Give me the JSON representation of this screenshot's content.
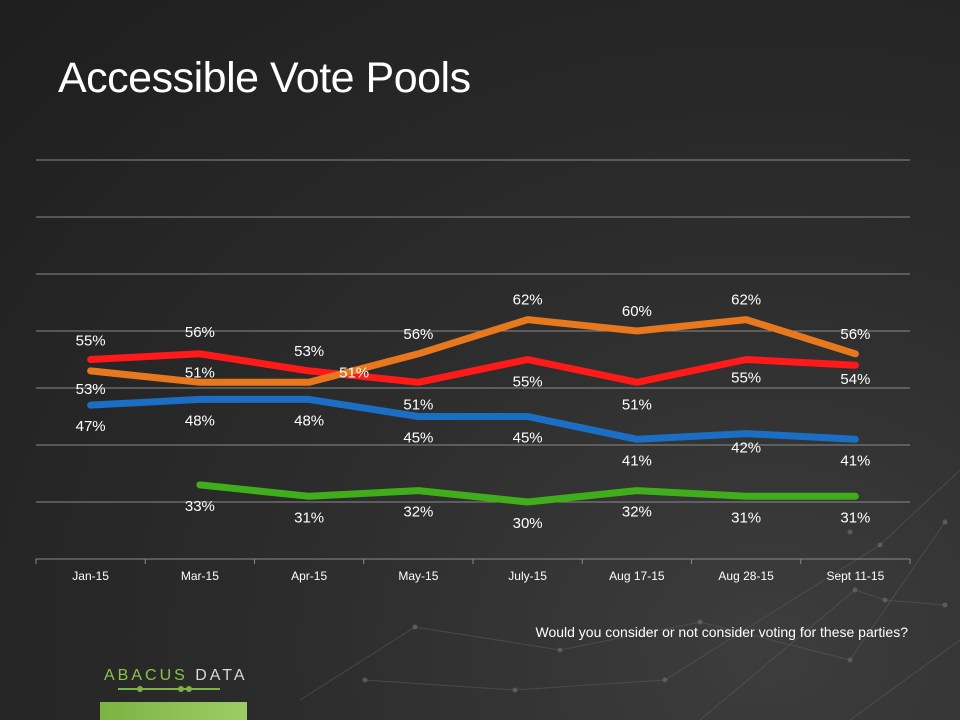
{
  "title": "Accessible Vote Pools",
  "question": "Would you consider or not consider voting for these parties?",
  "brand": {
    "name_part1": "ABACUS",
    "name_part2": "DATA"
  },
  "colors": {
    "background": "#262626",
    "grid": "#8a8a8a",
    "brand_green": "#7cb342"
  },
  "chart_data": {
    "type": "line",
    "title": "Accessible Vote Pools",
    "xlabel": "",
    "ylabel": "",
    "ylim": [
      20,
      90
    ],
    "grid": true,
    "legend": "none",
    "categories": [
      "Jan-15",
      "Mar-15",
      "Apr-15",
      "May-15",
      "July-15",
      "Aug 17-15",
      "Aug 28-15",
      "Sept 11-15"
    ],
    "series": [
      {
        "color": "#ff1a1a",
        "values": [
          55,
          56,
          53,
          51,
          55,
          51,
          55,
          54
        ],
        "labels": [
          "55%",
          "56%",
          "53%",
          "51%",
          "55%",
          "51%",
          "55%",
          "54%"
        ]
      },
      {
        "color": "#e8781e",
        "values": [
          53,
          51,
          51,
          56,
          62,
          60,
          62,
          56
        ],
        "labels": [
          "53%",
          "51%",
          "51%",
          "56%",
          "62%",
          "60%",
          "62%",
          "56%"
        ]
      },
      {
        "color": "#1a6fc4",
        "values": [
          47,
          48,
          48,
          45,
          45,
          41,
          42,
          41
        ],
        "labels": [
          "47%",
          "48%",
          "48%",
          "45%",
          "45%",
          "41%",
          "42%",
          "41%"
        ]
      },
      {
        "color": "#3fae1a",
        "values": [
          null,
          33,
          31,
          32,
          30,
          32,
          31,
          31
        ],
        "labels": [
          null,
          "33%",
          "31%",
          "32%",
          "30%",
          "32%",
          "31%",
          "31%"
        ]
      }
    ]
  }
}
